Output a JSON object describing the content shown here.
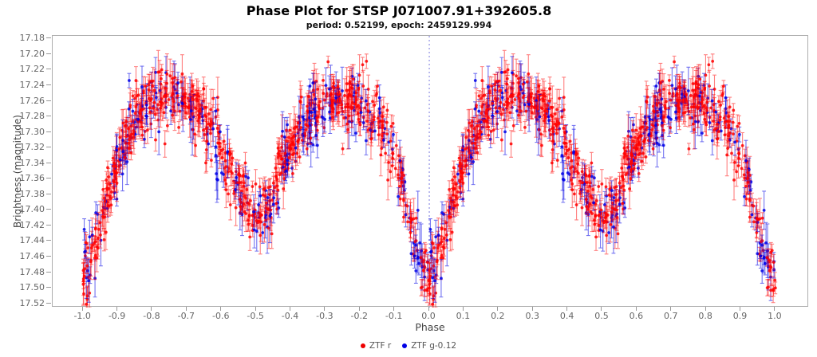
{
  "figure": {
    "title": "Phase Plot for STSP J071007.91+392605.8",
    "subtitle": "period: 0.52199, epoch: 2459129.994"
  },
  "chart_data": {
    "type": "scatter",
    "title": "Phase Plot for STSP J071007.91+392605.8",
    "subtitle": "period: 0.52199, epoch: 2459129.994",
    "xlabel": "Phase",
    "ylabel": "Brightness (magnitude)",
    "x_axis": {
      "min": -1.088,
      "max": 1.097,
      "ticks": [
        -1.0,
        -0.9,
        -0.8,
        -0.7,
        -0.6,
        -0.5,
        -0.4,
        -0.3,
        -0.2,
        -0.1,
        0.0,
        0.1,
        0.2,
        0.3,
        0.4,
        0.5,
        0.6,
        0.7,
        0.8,
        0.9,
        1.0
      ],
      "decimals": 1
    },
    "y_axis": {
      "min": 17.176,
      "max": 17.525,
      "inverted": true,
      "ticks": [
        17.18,
        17.2,
        17.22,
        17.24,
        17.26,
        17.28,
        17.3,
        17.32,
        17.34,
        17.36,
        17.38,
        17.4,
        17.42,
        17.44,
        17.46,
        17.48,
        17.5,
        17.52
      ],
      "decimals": 2
    },
    "phase_marker_line": {
      "phase": 0.0,
      "color": "#7a7ae0"
    },
    "legend": [
      {
        "label": "ZTF r",
        "color": "#ee0000"
      },
      {
        "label": "ZTF g-0.12",
        "color": "#0000e6"
      }
    ],
    "series": [
      {
        "name": "ZTF r",
        "color": "#ff0000",
        "n": 700,
        "sigma": 0.019,
        "err_base": 0.007,
        "err_var": 0.021,
        "marker_alpha": 0.85,
        "bar_alpha": 0.5
      },
      {
        "name": "ZTF g-0.12",
        "color": "#0000e6",
        "n": 225,
        "sigma": 0.021,
        "err_base": 0.009,
        "err_var": 0.026,
        "marker_alpha": 0.85,
        "bar_alpha": 0.55
      }
    ],
    "mean_curve_phase_mag": [
      [
        0.0,
        17.48
      ],
      [
        0.02,
        17.463
      ],
      [
        0.045,
        17.43
      ],
      [
        0.07,
        17.388
      ],
      [
        0.1,
        17.335
      ],
      [
        0.13,
        17.3
      ],
      [
        0.16,
        17.278
      ],
      [
        0.2,
        17.262
      ],
      [
        0.25,
        17.254
      ],
      [
        0.3,
        17.262
      ],
      [
        0.34,
        17.276
      ],
      [
        0.38,
        17.302
      ],
      [
        0.42,
        17.342
      ],
      [
        0.46,
        17.386
      ],
      [
        0.5,
        17.412
      ]
    ],
    "point_style": {
      "marker_radius": 1.9,
      "cap_half_width": 2.4,
      "bar_width": 1.1
    },
    "seed": 7
  }
}
